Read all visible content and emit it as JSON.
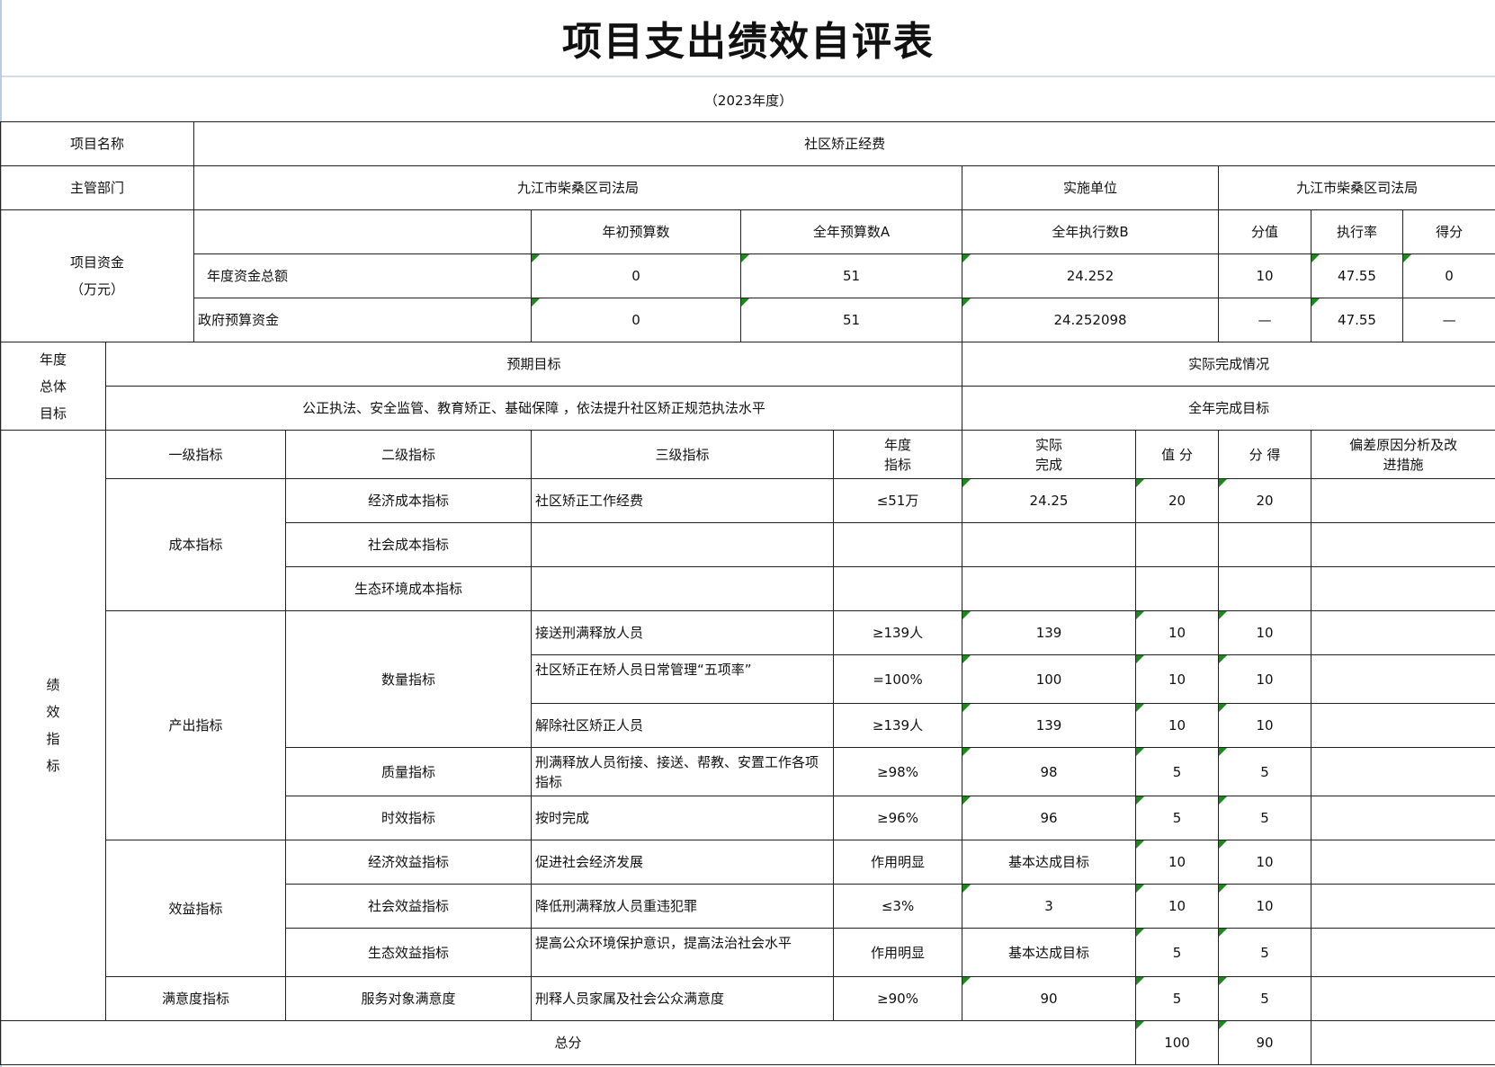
{
  "title": "项目支出绩效自评表",
  "subtitle": "（2023年度）",
  "project": {
    "name_label": "项目名称",
    "name": "社区矫正经费",
    "dept_label": "主管部门",
    "dept": "九江市柴桑区司法局",
    "impl_label": "实施单位",
    "impl": "九江市柴桑区司法局"
  },
  "funds": {
    "label": "项目资金",
    "unit": "（万元）",
    "headers": [
      "年初预算数",
      "全年预算数A",
      "全年执行数B",
      "分值",
      "执行率",
      "得分"
    ],
    "rows": [
      {
        "label": "年度资金总额",
        "initial": "0",
        "annual": "51",
        "executed": "24.252",
        "weight": "10",
        "rate": "47.55",
        "score": "0"
      },
      {
        "label": "政府预算资金",
        "initial": "0",
        "annual": "51",
        "executed": "24.252098",
        "weight": "—",
        "rate": "47.55",
        "score": "—"
      }
    ]
  },
  "goals": {
    "label_lines": [
      "年度",
      "总体",
      "目标"
    ],
    "expected_label": "预期目标",
    "actual_label": "实际完成情况",
    "expected": "公正执法、安全监管、教育矫正、基础保障 ，依法提升社区矫正规范执法水平",
    "actual": "全年完成目标"
  },
  "indicators": {
    "label_lines": [
      "绩",
      "效",
      "指",
      "标"
    ],
    "headers": {
      "level1": "一级指标",
      "level2": "二级指标",
      "level3": "三级指标",
      "target": "年度指标值",
      "actual": "实际完成值",
      "weight": "值 分",
      "score": "分 得",
      "deviation": "偏差原因分析及改进措施"
    },
    "rows": [
      {
        "level1": "成本指标",
        "level2": "经济成本指标",
        "level3": "社区矫正工作经费",
        "target": "≤51万",
        "actual": "24.25",
        "weight": "20",
        "score": "20"
      },
      {
        "level1": "成本指标",
        "level2": "社会成本指标",
        "level3": "",
        "target": "",
        "actual": "",
        "weight": "",
        "score": ""
      },
      {
        "level1": "成本指标",
        "level2": "生态环境成本指标",
        "level3": "",
        "target": "",
        "actual": "",
        "weight": "",
        "score": ""
      },
      {
        "level1": "产出指标",
        "level2": "数量指标",
        "level3": "接送刑满释放人员",
        "target": "≥139人",
        "actual": "139",
        "weight": "10",
        "score": "10"
      },
      {
        "level1": "产出指标",
        "level2": "数量指标",
        "level3": "社区矫正在矫人员日常管理“五项率”",
        "target": "=100%",
        "actual": "100",
        "weight": "10",
        "score": "10"
      },
      {
        "level1": "产出指标",
        "level2": "数量指标",
        "level3": "解除社区矫正人员",
        "target": "≥139人",
        "actual": "139",
        "weight": "10",
        "score": "10"
      },
      {
        "level1": "产出指标",
        "level2": "质量指标",
        "level3": "刑满释放人员衔接、接送、帮教、安置工作各项指标",
        "target": "≥98%",
        "actual": "98",
        "weight": "5",
        "score": "5"
      },
      {
        "level1": "产出指标",
        "level2": "时效指标",
        "level3": "按时完成",
        "target": "≥96%",
        "actual": "96",
        "weight": "5",
        "score": "5"
      },
      {
        "level1": "效益指标",
        "level2": "经济效益指标",
        "level3": "促进社会经济发展",
        "target": "作用明显",
        "actual": "基本达成目标",
        "weight": "10",
        "score": "10"
      },
      {
        "level1": "效益指标",
        "level2": "社会效益指标",
        "level3": "降低刑满释放人员重违犯罪",
        "target": "≤3%",
        "actual": "3",
        "weight": "10",
        "score": "10"
      },
      {
        "level1": "效益指标",
        "level2": "生态效益指标",
        "level3": "提高公众环境保护意识，提高法治社会水平",
        "target": "作用明显",
        "actual": "基本达成目标",
        "weight": "5",
        "score": "5"
      },
      {
        "level1": "满意度指标",
        "level2": "服务对象满意度",
        "level3": "刑释人员家属及社会公众满意度",
        "target": "≥90%",
        "actual": "90",
        "weight": "5",
        "score": "5"
      }
    ],
    "total_label": "总分",
    "total_weight": "100",
    "total_score": "90"
  },
  "colors": {
    "marker": "#1a8a1a",
    "page_edge": "#b9cbe6"
  }
}
